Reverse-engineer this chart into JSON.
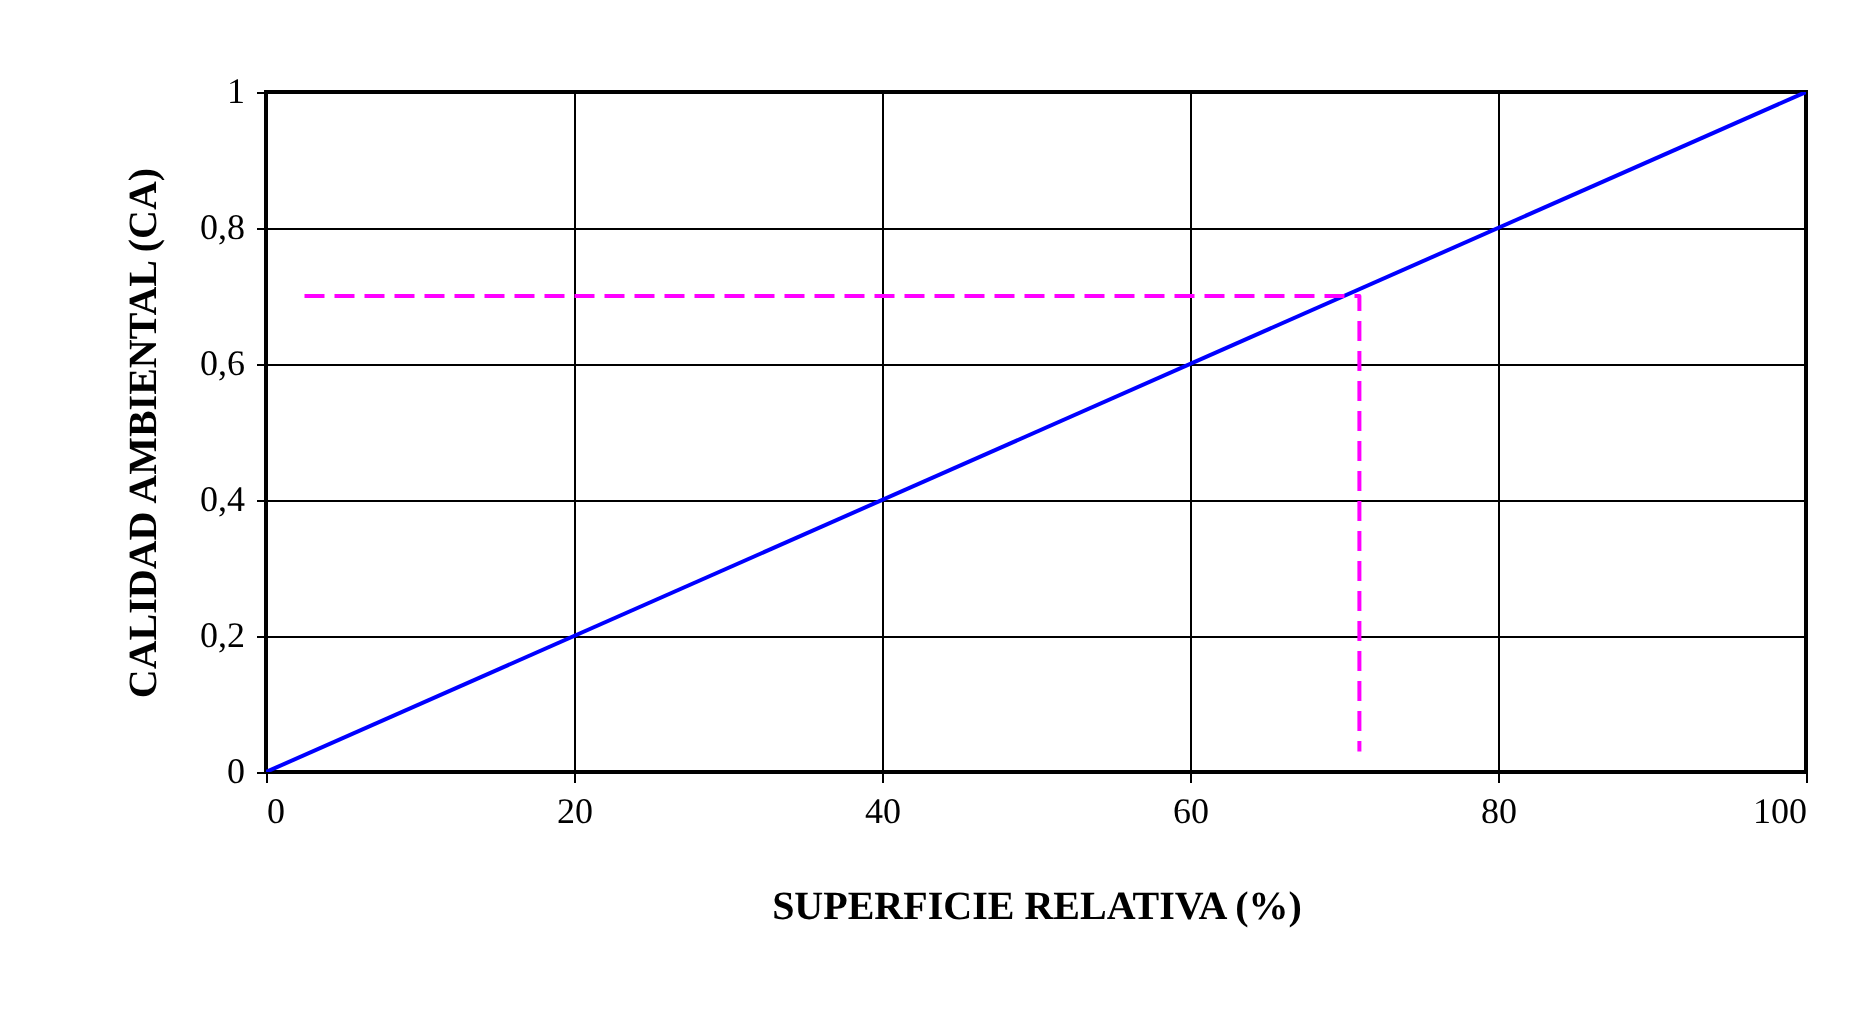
{
  "chart_data": {
    "type": "line",
    "xlabel": "SUPERFICIE RELATIVA (%)",
    "ylabel": "CALIDAD AMBIENTAL (CA)",
    "xlim": [
      0,
      100
    ],
    "xticks": [
      0,
      20,
      40,
      60,
      80,
      100
    ],
    "ylim": [
      0,
      1
    ],
    "yticks": [
      0,
      {
        "value": 0.2,
        "label": "0,2"
      },
      {
        "value": 0.4,
        "label": "0,4"
      },
      {
        "value": 0.6,
        "label": "0,6"
      },
      {
        "value": 0.8,
        "label": "0,8"
      },
      1
    ],
    "grid": true,
    "series": [
      {
        "color": "#0000ff",
        "line_style": "solid",
        "x": [
          0,
          100
        ],
        "values": [
          0,
          1
        ]
      },
      {
        "color": "#ff00ff",
        "line_style": "dashed",
        "x": [
          2.5,
          71,
          71
        ],
        "values": [
          0.7,
          0.7,
          0.03
        ]
      }
    ]
  }
}
